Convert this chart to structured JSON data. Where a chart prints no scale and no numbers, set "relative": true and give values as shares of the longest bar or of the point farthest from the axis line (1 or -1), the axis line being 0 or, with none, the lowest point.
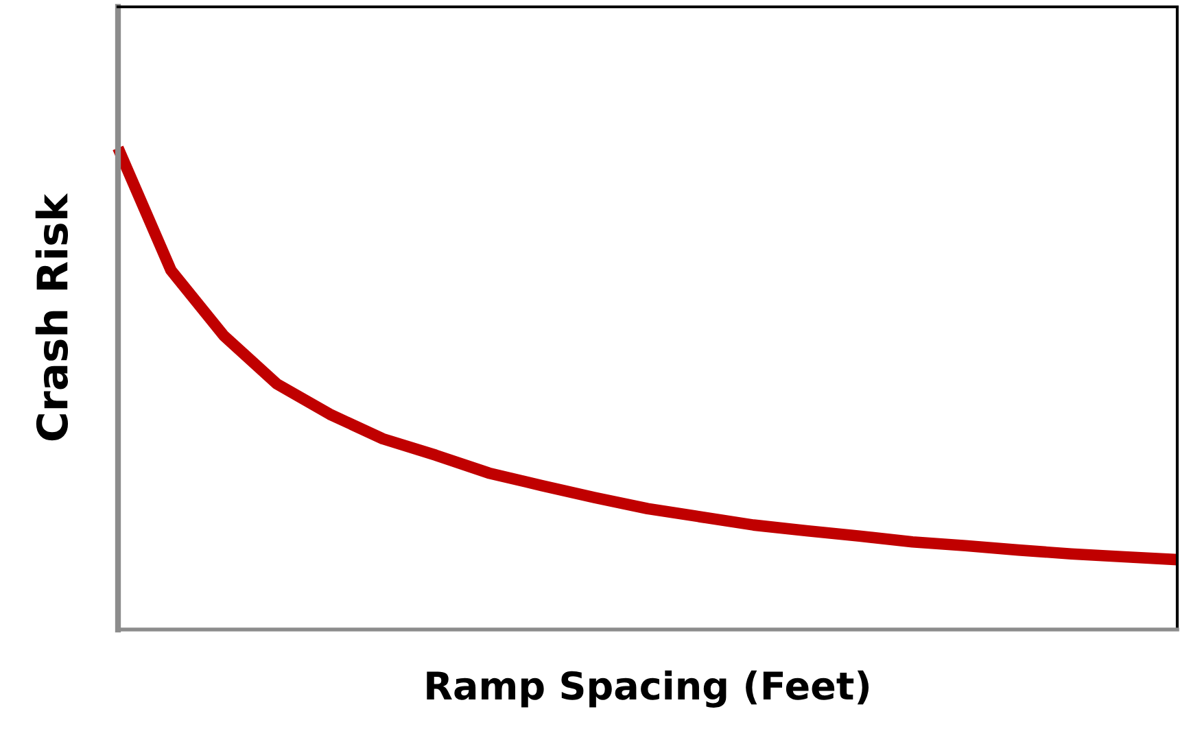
{
  "chart_data": {
    "type": "line",
    "relative": true,
    "xlabel": "Ramp Spacing (Feet)",
    "ylabel": "Crash Risk",
    "categories": [
      null,
      null,
      null,
      null,
      null,
      null,
      null,
      null,
      null,
      null,
      null,
      null,
      null,
      null,
      null,
      null,
      null,
      null,
      null,
      null,
      null
    ],
    "series": [
      {
        "color": "#c00000",
        "values": [
          1,
          0.746,
          0.61,
          0.51,
          0.447,
          0.396,
          0.362,
          0.325,
          0.299,
          0.274,
          0.251,
          0.234,
          0.217,
          0.205,
          0.194,
          0.182,
          0.174,
          0.165,
          0.157,
          0.151,
          0.145
        ]
      }
    ],
    "grid": false,
    "legend": false
  }
}
